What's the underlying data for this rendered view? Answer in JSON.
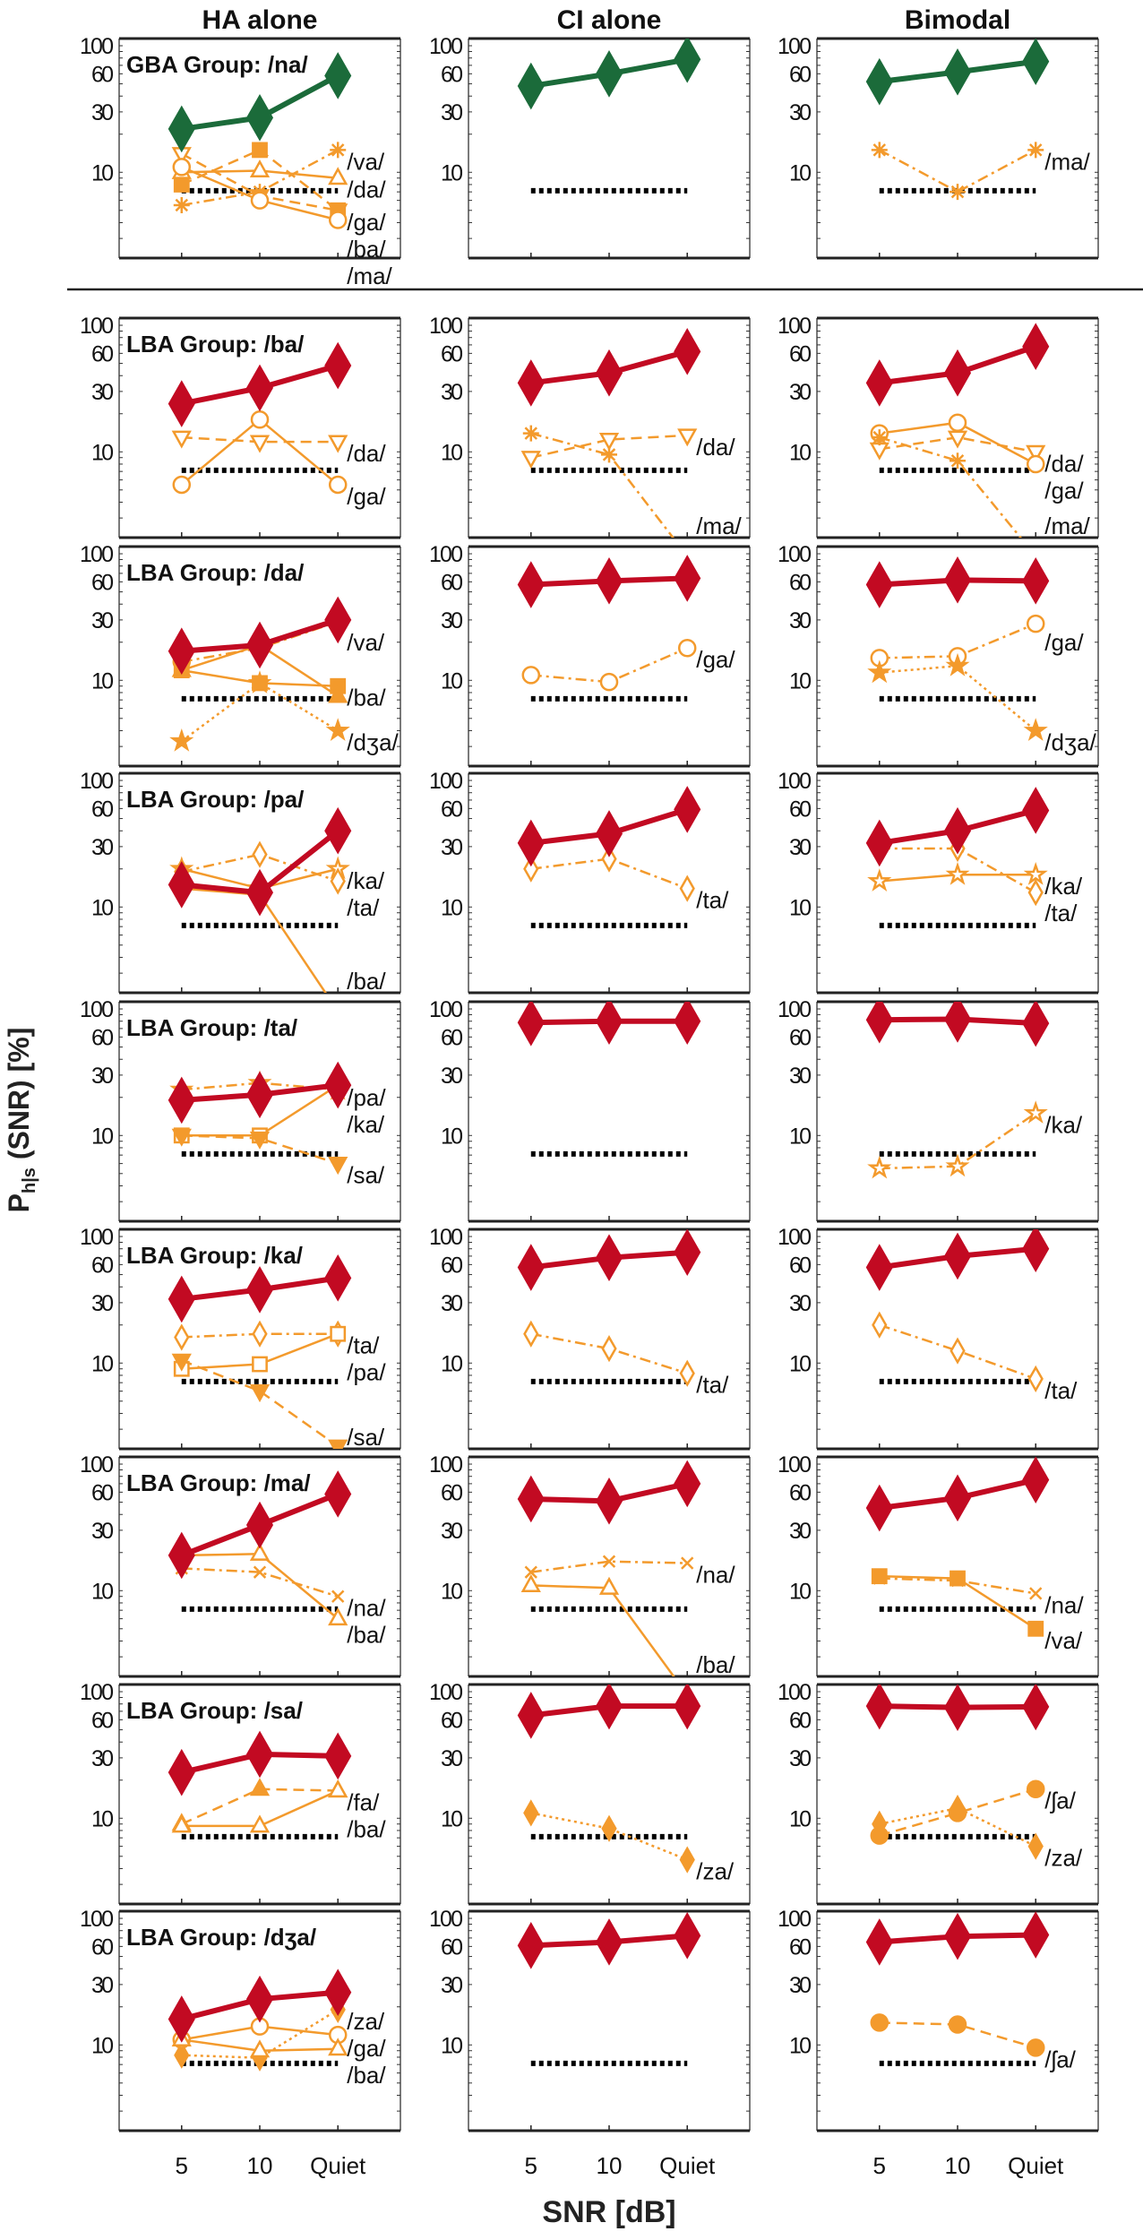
{
  "columns": [
    "HA alone",
    "CI alone",
    "Bimodal"
  ],
  "xlabel": "SNR [dB]",
  "ylabel": "P",
  "ylabel_sub": "h|s",
  "ylabel_rest": " (SNR) [%]",
  "colors": {
    "target_gba": "#1b6b3a",
    "target_lba": "#c20a22",
    "confusion": "#f39a2c",
    "chance": "#000000"
  },
  "axes": {
    "type": "line",
    "x_categories": [
      "5",
      "10",
      "Quiet"
    ],
    "yscale": "log",
    "ylim": [
      2.1,
      114
    ],
    "yticks": [
      10,
      30,
      60,
      100
    ],
    "chance_level": 7.14
  },
  "chart_data": [
    {
      "type": "line",
      "row": 0,
      "col": 0,
      "title": "GBA Group: /na/",
      "target": {
        "values": [
          22,
          27,
          58
        ],
        "color": "#1b6b3a"
      },
      "confusions": [
        {
          "name": "/ga/",
          "marker": "tri-down",
          "filled": false,
          "line": "dashed",
          "values": [
            14,
            6.5,
            5
          ]
        },
        {
          "name": "/ba/",
          "marker": "square",
          "filled": true,
          "line": "dashed",
          "values": [
            8,
            15,
            5
          ]
        },
        {
          "name": "/va/",
          "marker": "asterisk",
          "filled": false,
          "line": "dashdot",
          "values": [
            5.5,
            7,
            15
          ]
        },
        {
          "name": "/da/",
          "marker": "tri-up",
          "filled": false,
          "line": "solid",
          "values": [
            10,
            10.3,
            9
          ]
        },
        {
          "name": "/ma/",
          "marker": "circle",
          "filled": false,
          "line": "solid",
          "values": [
            11,
            6,
            4.2
          ]
        }
      ]
    },
    {
      "type": "line",
      "row": 0,
      "col": 1,
      "title": "",
      "target": {
        "values": [
          48,
          60,
          78
        ],
        "color": "#1b6b3a"
      },
      "confusions": []
    },
    {
      "type": "line",
      "row": 0,
      "col": 2,
      "title": "",
      "target": {
        "values": [
          52,
          62,
          75
        ],
        "color": "#1b6b3a"
      },
      "confusions": [
        {
          "name": "/ma/",
          "marker": "asterisk",
          "filled": false,
          "line": "dashdot",
          "values": [
            15,
            7,
            15
          ]
        }
      ]
    },
    {
      "type": "line",
      "row": 1,
      "col": 0,
      "title": "LBA Group: /ba/",
      "target": {
        "values": [
          24,
          32,
          48
        ],
        "color": "#c20a22"
      },
      "confusions": [
        {
          "name": "/da/",
          "marker": "tri-down",
          "filled": false,
          "line": "dashed",
          "values": [
            13,
            12,
            12
          ]
        },
        {
          "name": "/ga/",
          "marker": "circle",
          "filled": false,
          "line": "solid",
          "values": [
            5.5,
            18,
            5.5
          ]
        }
      ]
    },
    {
      "type": "line",
      "row": 1,
      "col": 1,
      "title": "",
      "target": {
        "values": [
          35,
          42,
          62
        ],
        "color": "#c20a22"
      },
      "confusions": [
        {
          "name": "/da/",
          "marker": "tri-down",
          "filled": false,
          "line": "dashed",
          "values": [
            9,
            12.5,
            13.5
          ]
        },
        {
          "name": "/ma/",
          "marker": "asterisk",
          "filled": false,
          "line": "dashdot",
          "values": [
            14,
            9.5,
            1.5
          ]
        }
      ]
    },
    {
      "type": "line",
      "row": 1,
      "col": 2,
      "title": "",
      "target": {
        "values": [
          35,
          42,
          68
        ],
        "color": "#c20a22"
      },
      "confusions": [
        {
          "name": "/da/",
          "marker": "tri-down",
          "filled": false,
          "line": "dashed",
          "values": [
            10.5,
            13,
            10
          ]
        },
        {
          "name": "/ga/",
          "marker": "circle",
          "filled": false,
          "line": "solid",
          "values": [
            14,
            17,
            8
          ]
        },
        {
          "name": "/ma/",
          "marker": "asterisk",
          "filled": false,
          "line": "dashdot",
          "values": [
            13,
            8.5,
            1.5
          ]
        }
      ]
    },
    {
      "type": "line",
      "row": 2,
      "col": 0,
      "title": "LBA Group: /da/",
      "target": {
        "values": [
          17,
          19,
          30
        ],
        "color": "#c20a22"
      },
      "confusions": [
        {
          "name": "/va/",
          "marker": "circle",
          "filled": false,
          "line": "dashdot",
          "values": [
            14,
            18,
            29
          ]
        },
        {
          "name": "/ba/",
          "marker": "square",
          "filled": true,
          "line": "solid",
          "values": [
            12,
            9.5,
            9
          ]
        },
        {
          "marker": "tri-up",
          "filled": true,
          "line": "solid",
          "values": [
            12,
            19,
            7.5
          ]
        },
        {
          "name": "/dʒa/",
          "marker": "star",
          "filled": true,
          "line": "dotted",
          "values": [
            3.3,
            9.5,
            4
          ]
        }
      ]
    },
    {
      "type": "line",
      "row": 2,
      "col": 1,
      "title": "",
      "target": {
        "values": [
          57,
          61,
          64
        ],
        "color": "#c20a22"
      },
      "confusions": [
        {
          "name": "/ga/",
          "marker": "circle",
          "filled": false,
          "line": "dashdot",
          "values": [
            11,
            9.7,
            18
          ]
        }
      ]
    },
    {
      "type": "line",
      "row": 2,
      "col": 2,
      "title": "",
      "target": {
        "values": [
          57,
          62,
          61
        ],
        "color": "#c20a22"
      },
      "confusions": [
        {
          "name": "/ga/",
          "marker": "circle",
          "filled": false,
          "line": "dashdot",
          "values": [
            15,
            15.5,
            28
          ]
        },
        {
          "name": "/dʒa/",
          "marker": "star",
          "filled": true,
          "line": "dotted",
          "values": [
            11.5,
            13,
            4
          ]
        }
      ]
    },
    {
      "type": "line",
      "row": 3,
      "col": 0,
      "title": "LBA Group: /pa/",
      "target": {
        "values": [
          15,
          13,
          40
        ],
        "color": "#c20a22"
      },
      "confusions": [
        {
          "name": "/ka/",
          "marker": "star",
          "filled": false,
          "line": "solid",
          "values": [
            20,
            14,
            20
          ]
        },
        {
          "name": "/ta/",
          "marker": "diamond",
          "filled": false,
          "line": "dashdot",
          "values": [
            19,
            26,
            16
          ]
        },
        {
          "name": "/ba/",
          "marker": "none",
          "filled": false,
          "line": "solid",
          "values": [
            14,
            12.5,
            1.5
          ]
        }
      ]
    },
    {
      "type": "line",
      "row": 3,
      "col": 1,
      "title": "",
      "target": {
        "values": [
          32,
          38,
          59
        ],
        "color": "#c20a22"
      },
      "confusions": [
        {
          "name": "/ta/",
          "marker": "diamond",
          "filled": false,
          "line": "dashdot",
          "values": [
            20,
            24,
            14
          ]
        }
      ]
    },
    {
      "type": "line",
      "row": 3,
      "col": 2,
      "title": "",
      "target": {
        "values": [
          32,
          40,
          58
        ],
        "color": "#c20a22"
      },
      "confusions": [
        {
          "name": "/ka/",
          "marker": "star",
          "filled": false,
          "line": "solid",
          "values": [
            16,
            18,
            18
          ]
        },
        {
          "name": "/ta/",
          "marker": "diamond",
          "filled": false,
          "line": "dashdot",
          "values": [
            29,
            29,
            13
          ]
        }
      ]
    },
    {
      "type": "line",
      "row": 4,
      "col": 0,
      "title": "LBA Group: /ta/",
      "target": {
        "values": [
          19,
          21,
          25
        ],
        "color": "#c20a22"
      },
      "confusions": [
        {
          "name": "/ka/",
          "marker": "star",
          "filled": false,
          "line": "dashdot",
          "values": [
            23,
            26,
            23
          ]
        },
        {
          "name": "/pa/",
          "marker": "square",
          "filled": false,
          "line": "solid",
          "values": [
            10,
            10,
            25
          ]
        },
        {
          "name": "/sa/",
          "marker": "tri-down",
          "filled": true,
          "line": "dashed",
          "values": [
            10,
            9.5,
            6
          ]
        }
      ]
    },
    {
      "type": "line",
      "row": 4,
      "col": 1,
      "title": "",
      "target": {
        "values": [
          78,
          80,
          80
        ],
        "color": "#c20a22"
      },
      "confusions": []
    },
    {
      "type": "line",
      "row": 4,
      "col": 2,
      "title": "",
      "target": {
        "values": [
          82,
          83,
          77
        ],
        "color": "#c20a22"
      },
      "confusions": [
        {
          "name": "/ka/",
          "marker": "star",
          "filled": false,
          "line": "dashdot",
          "values": [
            5.5,
            5.7,
            15
          ]
        }
      ]
    },
    {
      "type": "line",
      "row": 5,
      "col": 0,
      "title": "LBA Group: /ka/",
      "target": {
        "values": [
          32,
          38,
          47
        ],
        "color": "#c20a22"
      },
      "confusions": [
        {
          "name": "/ta/",
          "marker": "diamond",
          "filled": false,
          "line": "dashdot",
          "values": [
            16,
            17,
            17
          ]
        },
        {
          "name": "/pa/",
          "marker": "square",
          "filled": false,
          "line": "solid",
          "values": [
            9,
            9.8,
            17
          ]
        },
        {
          "name": "/sa/",
          "marker": "tri-down",
          "filled": true,
          "line": "dashed",
          "values": [
            10.5,
            6,
            2.2
          ]
        }
      ]
    },
    {
      "type": "line",
      "row": 5,
      "col": 1,
      "title": "",
      "target": {
        "values": [
          57,
          68,
          75
        ],
        "color": "#c20a22"
      },
      "confusions": [
        {
          "name": "/ta/",
          "marker": "diamond",
          "filled": false,
          "line": "dashdot",
          "values": [
            17,
            13,
            8.3
          ]
        }
      ]
    },
    {
      "type": "line",
      "row": 5,
      "col": 2,
      "title": "",
      "target": {
        "values": [
          57,
          70,
          80
        ],
        "color": "#c20a22"
      },
      "confusions": [
        {
          "name": "/ta/",
          "marker": "diamond",
          "filled": false,
          "line": "dashdot",
          "values": [
            20,
            12.5,
            7.5
          ]
        }
      ]
    },
    {
      "type": "line",
      "row": 6,
      "col": 0,
      "title": "LBA Group: /ma/",
      "target": {
        "values": [
          19,
          33,
          58
        ],
        "color": "#c20a22"
      },
      "confusions": [
        {
          "name": "/na/",
          "marker": "x",
          "filled": false,
          "line": "dashdot",
          "values": [
            15,
            14,
            9
          ]
        },
        {
          "name": "/ba/",
          "marker": "tri-up",
          "filled": false,
          "line": "solid",
          "values": [
            19,
            19.5,
            6
          ]
        }
      ]
    },
    {
      "type": "line",
      "row": 6,
      "col": 1,
      "title": "",
      "target": {
        "values": [
          53,
          51,
          70
        ],
        "color": "#c20a22"
      },
      "confusions": [
        {
          "name": "/na/",
          "marker": "x",
          "filled": false,
          "line": "dashdot",
          "values": [
            14,
            17,
            16.5
          ]
        },
        {
          "name": "/ba/",
          "marker": "tri-up",
          "filled": false,
          "line": "solid",
          "values": [
            11,
            10.5,
            1.5
          ]
        }
      ]
    },
    {
      "type": "line",
      "row": 6,
      "col": 2,
      "title": "",
      "target": {
        "values": [
          45,
          54,
          75
        ],
        "color": "#c20a22"
      },
      "confusions": [
        {
          "name": "/na/",
          "marker": "x",
          "filled": false,
          "line": "dashdot",
          "values": [
            12.5,
            12,
            9.5
          ]
        },
        {
          "name": "/va/",
          "marker": "square",
          "filled": true,
          "line": "solid",
          "values": [
            13,
            12.5,
            5
          ]
        }
      ]
    },
    {
      "type": "line",
      "row": 7,
      "col": 0,
      "title": "LBA Group: /sa/",
      "target": {
        "values": [
          23,
          32,
          31
        ],
        "color": "#c20a22"
      },
      "confusions": [
        {
          "name": "/fa/",
          "marker": "tri-up",
          "filled": true,
          "line": "dashed",
          "values": [
            9,
            17,
            16.5
          ]
        },
        {
          "name": "/ba/",
          "marker": "tri-up",
          "filled": false,
          "line": "solid",
          "values": [
            8.7,
            8.7,
            16.5
          ]
        }
      ]
    },
    {
      "type": "line",
      "row": 7,
      "col": 1,
      "title": "",
      "target": {
        "values": [
          65,
          77,
          77
        ],
        "color": "#c20a22"
      },
      "confusions": [
        {
          "name": "/za/",
          "marker": "diamond",
          "filled": true,
          "line": "dotted",
          "values": [
            11,
            8.3,
            4.7
          ]
        }
      ]
    },
    {
      "type": "line",
      "row": 7,
      "col": 2,
      "title": "",
      "target": {
        "values": [
          77,
          75,
          76
        ],
        "color": "#c20a22"
      },
      "confusions": [
        {
          "name": "/ʃa/",
          "marker": "circle",
          "filled": true,
          "line": "dashed",
          "values": [
            7.3,
            11,
            17
          ]
        },
        {
          "name": "/za/",
          "marker": "diamond",
          "filled": true,
          "line": "dotted",
          "values": [
            9,
            12,
            6
          ]
        }
      ]
    },
    {
      "type": "line",
      "row": 8,
      "col": 0,
      "title": "LBA Group: /dʒa/",
      "target": {
        "values": [
          16,
          23,
          26
        ],
        "color": "#c20a22"
      },
      "confusions": [
        {
          "name": "/za/",
          "marker": "diamond",
          "filled": true,
          "line": "dotted",
          "values": [
            8.3,
            7.9,
            19
          ]
        },
        {
          "name": "/ga/",
          "marker": "circle",
          "filled": false,
          "line": "solid",
          "values": [
            11,
            14,
            12
          ]
        },
        {
          "name": "/ba/",
          "marker": "tri-up",
          "filled": false,
          "line": "solid",
          "values": [
            11,
            9,
            9.3
          ]
        }
      ]
    },
    {
      "type": "line",
      "row": 8,
      "col": 1,
      "title": "",
      "target": {
        "values": [
          61,
          65,
          73
        ],
        "color": "#c20a22"
      },
      "confusions": []
    },
    {
      "type": "line",
      "row": 8,
      "col": 2,
      "title": "",
      "target": {
        "values": [
          65,
          72,
          74
        ],
        "color": "#c20a22"
      },
      "confusions": [
        {
          "name": "/ʃa/",
          "marker": "circle",
          "filled": true,
          "line": "dashed",
          "values": [
            15,
            14.5,
            9.5
          ]
        }
      ]
    }
  ]
}
